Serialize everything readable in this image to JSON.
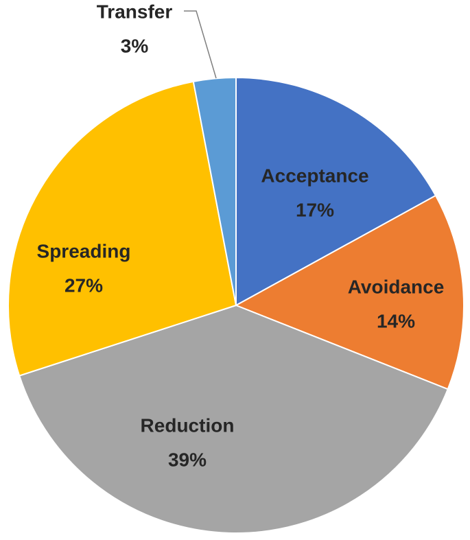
{
  "chart_data": {
    "type": "pie",
    "title": "",
    "slices": [
      {
        "name": "Acceptance",
        "value": 17,
        "pct_label": "17%",
        "color": "#4472C4"
      },
      {
        "name": "Avoidance",
        "value": 14,
        "pct_label": "14%",
        "color": "#ED7D31"
      },
      {
        "name": "Reduction",
        "value": 39,
        "pct_label": "39%",
        "color": "#A5A5A5"
      },
      {
        "name": "Spreading",
        "value": 27,
        "pct_label": "27%",
        "color": "#FFC000"
      },
      {
        "name": "Transfer",
        "value": 3,
        "pct_label": "3%",
        "color": "#5B9BD5"
      }
    ],
    "start": "12 o'clock",
    "direction": "clockwise",
    "legend": "none",
    "data_labels": "category name and percentage"
  }
}
